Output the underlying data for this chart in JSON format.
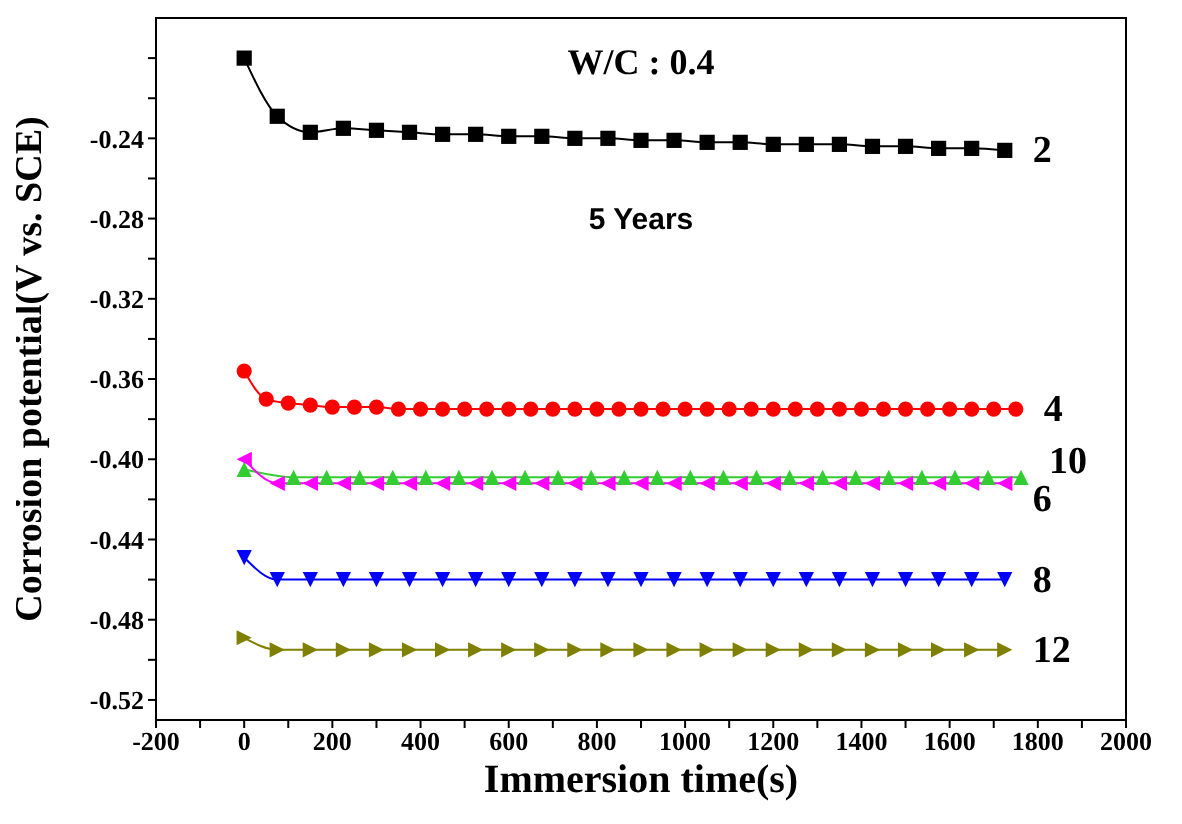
{
  "chart_data": {
    "type": "line",
    "xlabel": "Immersion time(s)",
    "ylabel": "Corrosion potential(V vs. SCE)",
    "annotations": [
      "W/C : 0.4",
      "5 Years"
    ],
    "xlim": [
      -200,
      2000
    ],
    "xticks": [
      -200,
      {
        "value": -100,
        "label": null
      },
      0,
      {
        "value": 100,
        "label": null
      },
      200,
      {
        "value": 300,
        "label": null
      },
      400,
      {
        "value": 500,
        "label": null
      },
      600,
      {
        "value": 700,
        "label": null
      },
      800,
      {
        "value": 900,
        "label": null
      },
      1000,
      {
        "value": 1100,
        "label": null
      },
      1200,
      {
        "value": 1300,
        "label": null
      },
      1400,
      {
        "value": 1500,
        "label": null
      },
      1600,
      {
        "value": 1700,
        "label": null
      },
      1800,
      {
        "value": 1900,
        "label": null
      },
      2000
    ],
    "ylim": [
      -0.53,
      -0.18
    ],
    "yticks": [
      -0.52,
      {
        "value": -0.5,
        "label": null
      },
      -0.48,
      {
        "value": -0.46,
        "label": null
      },
      -0.44,
      {
        "value": -0.42,
        "label": null
      },
      {
        "value": -0.4,
        "label": "-0.40"
      },
      {
        "value": -0.38,
        "label": null
      },
      -0.36,
      {
        "value": -0.34,
        "label": null
      },
      -0.32,
      {
        "value": -0.3,
        "label": null
      },
      -0.28,
      {
        "value": -0.26,
        "label": null
      },
      -0.24,
      {
        "value": -0.22,
        "label": null
      },
      {
        "value": -0.2,
        "label": null
      }
    ],
    "line_style": "solid",
    "series": [
      {
        "name": "2",
        "color": "#000000",
        "marker": "square",
        "x": [
          0,
          75,
          150,
          225,
          300,
          375,
          450,
          525,
          600,
          675,
          750,
          825,
          900,
          975,
          1050,
          1125,
          1200,
          1275,
          1350,
          1425,
          1500,
          1575,
          1650,
          1725
        ],
        "values": [
          -0.2,
          -0.229,
          -0.237,
          -0.235,
          -0.236,
          -0.237,
          -0.238,
          -0.238,
          -0.239,
          -0.239,
          -0.24,
          -0.24,
          -0.241,
          -0.241,
          -0.242,
          -0.242,
          -0.243,
          -0.243,
          -0.243,
          -0.244,
          -0.244,
          -0.245,
          -0.245,
          -0.246
        ]
      },
      {
        "name": "4",
        "color": "#ff0000",
        "marker": "circle",
        "x": [
          0,
          50,
          100,
          150,
          200,
          250,
          300,
          350,
          400,
          450,
          500,
          550,
          600,
          650,
          700,
          750,
          800,
          850,
          900,
          950,
          1000,
          1050,
          1100,
          1150,
          1200,
          1250,
          1300,
          1350,
          1400,
          1450,
          1500,
          1550,
          1600,
          1650,
          1700,
          1750
        ],
        "values": [
          -0.356,
          -0.37,
          -0.372,
          -0.373,
          -0.374,
          -0.374,
          -0.374,
          -0.375,
          -0.375,
          -0.375,
          -0.375,
          -0.375,
          -0.375,
          -0.375,
          -0.375,
          -0.375,
          -0.375,
          -0.375,
          -0.375,
          -0.375,
          -0.375,
          -0.375,
          -0.375,
          -0.375,
          -0.375,
          -0.375,
          -0.375,
          -0.375,
          -0.375,
          -0.375,
          -0.375,
          -0.375,
          -0.375,
          -0.375,
          -0.375,
          -0.375
        ]
      },
      {
        "name": "10",
        "color": "#33cc33",
        "marker": "triangle",
        "x": [
          0,
          112,
          187,
          262,
          337,
          412,
          487,
          562,
          637,
          712,
          787,
          862,
          937,
          1012,
          1087,
          1162,
          1237,
          1312,
          1387,
          1462,
          1537,
          1612,
          1687,
          1762
        ],
        "values": [
          -0.405,
          -0.409,
          -0.409,
          -0.409,
          -0.409,
          -0.409,
          -0.409,
          -0.409,
          -0.409,
          -0.409,
          -0.409,
          -0.409,
          -0.409,
          -0.409,
          -0.409,
          -0.409,
          -0.409,
          -0.409,
          -0.409,
          -0.409,
          -0.409,
          -0.409,
          -0.409,
          -0.409
        ]
      },
      {
        "name": "6",
        "color": "#ff00ff",
        "marker": "triangle-left",
        "x": [
          0,
          75,
          150,
          225,
          300,
          375,
          450,
          525,
          600,
          675,
          750,
          825,
          900,
          975,
          1050,
          1125,
          1200,
          1275,
          1350,
          1425,
          1500,
          1575,
          1650,
          1725
        ],
        "values": [
          -0.4,
          -0.412,
          -0.412,
          -0.412,
          -0.412,
          -0.412,
          -0.412,
          -0.412,
          -0.412,
          -0.412,
          -0.412,
          -0.412,
          -0.412,
          -0.412,
          -0.412,
          -0.412,
          -0.412,
          -0.412,
          -0.412,
          -0.412,
          -0.412,
          -0.412,
          -0.412,
          -0.412
        ]
      },
      {
        "name": "8",
        "color": "#0000ff",
        "marker": "triangle-down",
        "x": [
          0,
          75,
          150,
          225,
          300,
          375,
          450,
          525,
          600,
          675,
          750,
          825,
          900,
          975,
          1050,
          1125,
          1200,
          1275,
          1350,
          1425,
          1500,
          1575,
          1650,
          1725
        ],
        "values": [
          -0.449,
          -0.46,
          -0.46,
          -0.46,
          -0.46,
          -0.46,
          -0.46,
          -0.46,
          -0.46,
          -0.46,
          -0.46,
          -0.46,
          -0.46,
          -0.46,
          -0.46,
          -0.46,
          -0.46,
          -0.46,
          -0.46,
          -0.46,
          -0.46,
          -0.46,
          -0.46,
          -0.46
        ]
      },
      {
        "name": "12",
        "color": "#808000",
        "marker": "triangle-right",
        "x": [
          0,
          75,
          150,
          225,
          300,
          375,
          450,
          525,
          600,
          675,
          750,
          825,
          900,
          975,
          1050,
          1125,
          1200,
          1275,
          1350,
          1425,
          1500,
          1575,
          1650,
          1725
        ],
        "values": [
          -0.489,
          -0.495,
          -0.495,
          -0.495,
          -0.495,
          -0.495,
          -0.495,
          -0.495,
          -0.495,
          -0.495,
          -0.495,
          -0.495,
          -0.495,
          -0.495,
          -0.495,
          -0.495,
          -0.495,
          -0.495,
          -0.495,
          -0.495,
          -0.495,
          -0.495,
          -0.495,
          -0.495
        ]
      }
    ]
  }
}
